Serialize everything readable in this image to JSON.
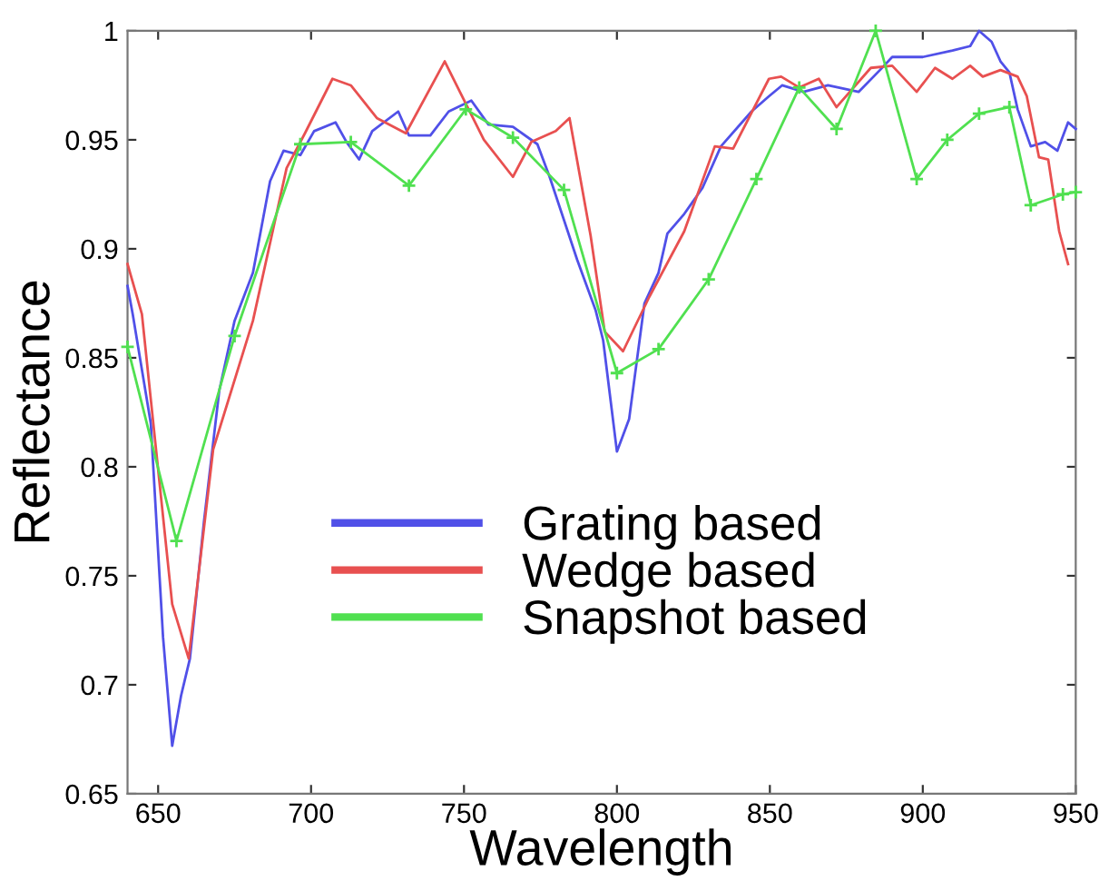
{
  "chart_data": {
    "type": "line",
    "xlabel": "Wavelength",
    "ylabel": "Reflectance",
    "xlim": [
      640,
      950
    ],
    "ylim": [
      0.65,
      1
    ],
    "xticks": [
      650,
      700,
      750,
      800,
      850,
      900,
      950
    ],
    "yticks": [
      0.65,
      0.7,
      0.75,
      0.8,
      0.85,
      0.9,
      0.95,
      1
    ],
    "grid": false,
    "legend": "bottom",
    "series": [
      {
        "name": "Grating based",
        "color": "#5050e8",
        "marker": "none",
        "x": [
          640,
          641.7,
          647.6,
          651.6,
          654.6,
          657.5,
          660.4,
          665,
          670,
          675,
          681,
          686.6,
          691,
          696.5,
          701,
          708,
          711.6,
          715.7,
          720,
          728.5,
          732,
          739,
          745,
          752.4,
          758,
          766,
          774,
          778,
          787,
          793,
          795.5,
          800,
          804,
          809,
          813.6,
          816.5,
          822,
          828,
          834,
          844,
          849.7,
          854,
          861,
          869,
          879,
          886,
          890,
          900,
          909.7,
          915.5,
          918.4,
          922.5,
          925.4,
          928.3,
          931,
          935.3,
          940,
          944,
          947.5,
          950
        ],
        "values": [
          0.883,
          0.87,
          0.82,
          0.722,
          0.672,
          0.695,
          0.712,
          0.775,
          0.835,
          0.867,
          0.889,
          0.931,
          0.945,
          0.943,
          0.954,
          0.958,
          0.949,
          0.941,
          0.954,
          0.963,
          0.952,
          0.952,
          0.963,
          0.968,
          0.957,
          0.956,
          0.948,
          0.933,
          0.895,
          0.872,
          0.858,
          0.807,
          0.822,
          0.875,
          0.889,
          0.907,
          0.916,
          0.928,
          0.947,
          0.963,
          0.97,
          0.975,
          0.972,
          0.975,
          0.972,
          0.982,
          0.988,
          0.988,
          0.991,
          0.993,
          1.0,
          0.995,
          0.986,
          0.981,
          0.964,
          0.947,
          0.949,
          0.945,
          0.958,
          0.955
        ]
      },
      {
        "name": "Wedge based",
        "color": "#e85050",
        "marker": "none",
        "x": [
          640,
          644.7,
          654.6,
          660,
          668,
          681,
          692,
          698,
          707,
          713,
          721.5,
          731,
          743.7,
          756.5,
          766,
          772,
          780,
          784.5,
          791.4,
          796,
          802,
          810.6,
          822,
          832,
          838,
          849.7,
          853.7,
          859.6,
          866,
          871.8,
          883,
          890,
          898,
          904,
          909.7,
          915.5,
          919.6,
          925.4,
          931,
          934,
          938,
          941,
          944.6,
          947.5
        ],
        "values": [
          0.893,
          0.87,
          0.737,
          0.712,
          0.808,
          0.867,
          0.937,
          0.953,
          0.978,
          0.975,
          0.96,
          0.953,
          0.986,
          0.95,
          0.933,
          0.949,
          0.954,
          0.96,
          0.906,
          0.862,
          0.853,
          0.878,
          0.908,
          0.947,
          0.946,
          0.978,
          0.979,
          0.974,
          0.978,
          0.965,
          0.983,
          0.984,
          0.972,
          0.983,
          0.978,
          0.984,
          0.979,
          0.982,
          0.979,
          0.97,
          0.942,
          0.941,
          0.908,
          0.893
        ]
      },
      {
        "name": "Snapshot based",
        "color": "#50e050",
        "marker": "cross",
        "x": [
          640,
          656,
          675,
          696.5,
          713,
          732,
          750.6,
          766,
          782.7,
          800,
          813.6,
          830,
          845.6,
          859.6,
          871.8,
          884.6,
          898,
          908,
          918.4,
          928.3,
          935.3,
          945.8,
          950
        ],
        "values": [
          0.855,
          0.766,
          0.86,
          0.948,
          0.949,
          0.929,
          0.964,
          0.951,
          0.927,
          0.843,
          0.854,
          0.886,
          0.932,
          0.974,
          0.955,
          1.0,
          0.932,
          0.95,
          0.962,
          0.965,
          0.92,
          0.925,
          0.926
        ]
      }
    ]
  }
}
